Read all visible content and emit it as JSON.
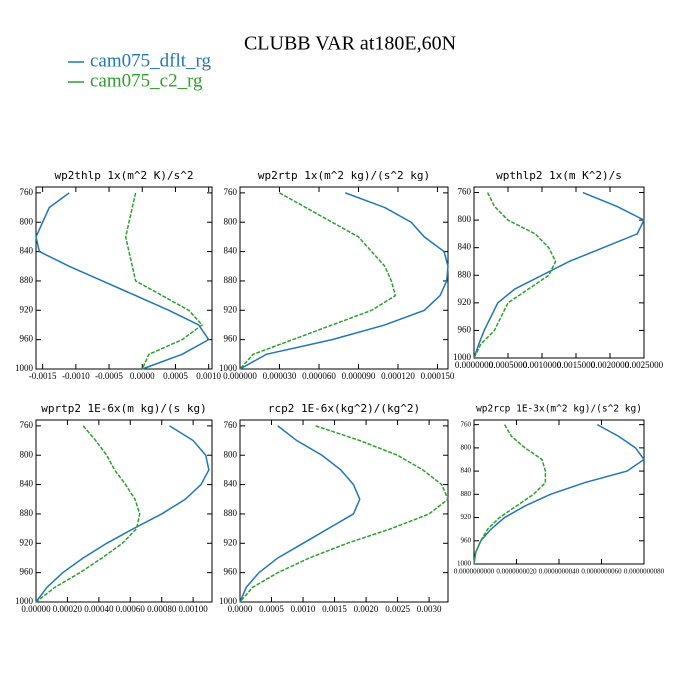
{
  "title": "CLUBB VAR at180E,60N",
  "series": [
    {
      "name": "cam075_dflt_rg",
      "color": "#1f77b4"
    },
    {
      "name": "cam075_c2_rg",
      "color": "#2ca02c"
    }
  ],
  "chart_data": [
    {
      "type": "line",
      "title": "wp2thlp  1x(m^2 K)/s^2",
      "y": [
        760,
        780,
        800,
        820,
        840,
        860,
        880,
        900,
        920,
        940,
        960,
        980,
        1000
      ],
      "series": [
        {
          "values": [
            -0.0011,
            -0.0014,
            -0.0015,
            -0.0016,
            -0.00155,
            -0.0011,
            -0.0006,
            -0.0001,
            0.0004,
            0.00085,
            0.001,
            0.0006,
            0.0
          ]
        },
        {
          "values": [
            -0.0001,
            -0.00015,
            -0.0002,
            -0.00025,
            -0.0002,
            -0.00015,
            -0.0001,
            0.0003,
            0.0007,
            0.0009,
            0.0006,
            0.0001,
            0.0
          ]
        }
      ],
      "xlim": [
        -0.0016,
        0.00105
      ],
      "xticks": [
        {
          "value": -0.0015,
          "label": "-0.0015"
        },
        {
          "value": -0.001,
          "label": "-0.0010"
        },
        {
          "value": -0.0005,
          "label": "-0.0005"
        },
        {
          "value": 0,
          "label": "0.0000"
        },
        {
          "value": 0.0005,
          "label": "0.0005"
        },
        {
          "value": 0.001,
          "label": "0.0010"
        }
      ],
      "ylim": [
        1000,
        752
      ],
      "yticks": [
        760,
        800,
        840,
        880,
        920,
        960,
        1000
      ]
    },
    {
      "type": "line",
      "title": "wp2rtp  1x(m^2 kg)/(s^2 kg)",
      "y": [
        760,
        780,
        800,
        820,
        840,
        860,
        880,
        900,
        920,
        940,
        960,
        980,
        1000
      ],
      "series": [
        {
          "values": [
            8e-05,
            0.00011,
            0.00013,
            0.00014,
            0.000155,
            0.000158,
            0.000157,
            0.000152,
            0.00014,
            0.00011,
            7e-05,
            2e-05,
            0.0
          ]
        },
        {
          "values": [
            3e-05,
            5e-05,
            7e-05,
            9e-05,
            0.0001,
            0.00011,
            0.000115,
            0.000118,
            0.0001,
            7e-05,
            4e-05,
            1e-05,
            0.0
          ]
        }
      ],
      "xlim": [
        0,
        0.000158
      ],
      "xticks": [
        {
          "value": 0,
          "label": "0.000000"
        },
        {
          "value": 3e-05,
          "label": "0.000030"
        },
        {
          "value": 6e-05,
          "label": "0.000060"
        },
        {
          "value": 9e-05,
          "label": "0.000090"
        },
        {
          "value": 0.00012,
          "label": "0.000120"
        },
        {
          "value": 0.00015,
          "label": "0.000150"
        }
      ],
      "ylim": [
        1000,
        752
      ],
      "yticks": [
        760,
        800,
        840,
        880,
        920,
        960,
        1000
      ]
    },
    {
      "type": "line",
      "title": "wpthlp2  1x(m K^2)/s",
      "y": [
        760,
        780,
        800,
        820,
        840,
        860,
        880,
        900,
        920,
        940,
        960,
        980,
        1000
      ],
      "series": [
        {
          "values": [
            0.0016,
            0.0021,
            0.0025,
            0.0024,
            0.0019,
            0.0014,
            0.001,
            0.0006,
            0.00035,
            0.00025,
            0.00015,
            7e-05,
            0.0
          ]
        },
        {
          "values": [
            0.0002,
            0.0003,
            0.0005,
            0.0009,
            0.0011,
            0.0012,
            0.0011,
            0.0008,
            0.0005,
            0.0004,
            0.0003,
            0.0001,
            0.0
          ]
        }
      ],
      "xlim": [
        0,
        0.0025
      ],
      "xticks": [
        {
          "value": 0,
          "label": "0.0000000"
        },
        {
          "value": 0.0005,
          "label": "0.0005000"
        },
        {
          "value": 0.001,
          "label": "0.0010000"
        },
        {
          "value": 0.0015,
          "label": "0.0015000"
        },
        {
          "value": 0.002,
          "label": "0.0020000"
        },
        {
          "value": 0.0025,
          "label": "0.0025000"
        }
      ],
      "ylim": [
        1000,
        752
      ],
      "yticks": [
        760,
        800,
        840,
        880,
        920,
        960,
        1000
      ]
    },
    {
      "type": "line",
      "title": "wprtp2  1E-6x(m kg)/(s kg)",
      "y": [
        760,
        780,
        800,
        820,
        840,
        860,
        880,
        900,
        920,
        940,
        960,
        980,
        1000
      ],
      "series": [
        {
          "values": [
            0.00085,
            0.001,
            0.00108,
            0.0011,
            0.00105,
            0.00095,
            0.0008,
            0.00062,
            0.00045,
            0.0003,
            0.00017,
            7e-05,
            0.0
          ]
        },
        {
          "values": [
            0.0003,
            0.00038,
            0.00045,
            0.0005,
            0.00057,
            0.00063,
            0.00066,
            0.00064,
            0.00055,
            0.00042,
            0.00028,
            0.00012,
            0.0
          ]
        }
      ],
      "xlim": [
        0,
        0.00112
      ],
      "xticks": [
        {
          "value": 0,
          "label": "0.00000"
        },
        {
          "value": 0.0002,
          "label": "0.00020"
        },
        {
          "value": 0.0004,
          "label": "0.00040"
        },
        {
          "value": 0.0006,
          "label": "0.00060"
        },
        {
          "value": 0.0008,
          "label": "0.00080"
        },
        {
          "value": 0.001,
          "label": "0.00100"
        }
      ],
      "ylim": [
        1000,
        752
      ],
      "yticks": [
        760,
        800,
        840,
        880,
        920,
        960,
        1000
      ]
    },
    {
      "type": "line",
      "title": "rcp2  1E-6x(kg^2)/(kg^2)",
      "y": [
        760,
        780,
        800,
        820,
        840,
        860,
        880,
        900,
        920,
        940,
        960,
        980,
        1000
      ],
      "series": [
        {
          "values": [
            0.0006,
            0.0009,
            0.0013,
            0.0016,
            0.0018,
            0.0019,
            0.0018,
            0.0014,
            0.001,
            0.0006,
            0.0003,
            0.0001,
            0.0
          ]
        },
        {
          "values": [
            0.0012,
            0.0019,
            0.0025,
            0.0029,
            0.0032,
            0.0033,
            0.003,
            0.0024,
            0.0017,
            0.0011,
            0.0006,
            0.0002,
            0.0
          ]
        }
      ],
      "xlim": [
        0,
        0.0033
      ],
      "xticks": [
        {
          "value": 0,
          "label": "0.0000"
        },
        {
          "value": 0.0005,
          "label": "0.0005"
        },
        {
          "value": 0.001,
          "label": "0.0010"
        },
        {
          "value": 0.0015,
          "label": "0.0015"
        },
        {
          "value": 0.002,
          "label": "0.0020"
        },
        {
          "value": 0.0025,
          "label": "0.0025"
        },
        {
          "value": 0.003,
          "label": "0.0030"
        }
      ],
      "ylim": [
        1000,
        752
      ],
      "yticks": [
        760,
        800,
        840,
        880,
        920,
        960,
        1000
      ]
    },
    {
      "type": "line",
      "title": "wp2rcp  1E-3x(m^2 kg)/(s^2 kg)",
      "y": [
        760,
        780,
        800,
        820,
        840,
        860,
        880,
        900,
        920,
        940,
        960,
        980,
        1000
      ],
      "series": [
        {
          "values": [
            5.8e-09,
            6.8e-09,
            7.6e-09,
            8e-09,
            7.2e-09,
            5.2e-09,
            3.6e-09,
            2.4e-09,
            1.44e-09,
            8e-10,
            3.2e-10,
            8e-11,
            0
          ]
        },
        {
          "values": [
            1.44e-09,
            1.76e-09,
            2.4e-09,
            3.2e-09,
            3.36e-09,
            3.36e-09,
            2.8e-09,
            2e-09,
            1.2e-09,
            6.4e-10,
            3.2e-10,
            8e-11,
            0
          ]
        }
      ],
      "xlim": [
        0,
        8e-09
      ],
      "xticks": [
        {
          "value": 0,
          "label": "0.0000000000"
        },
        {
          "value": 2e-09,
          "label": "0.0000000020"
        },
        {
          "value": 4e-09,
          "label": "0.0000000040"
        },
        {
          "value": 6e-09,
          "label": "0.0000000060"
        },
        {
          "value": 8e-09,
          "label": "0.0000000080"
        }
      ],
      "ylim": [
        1000,
        752
      ],
      "yticks": [
        760,
        800,
        840,
        880,
        920,
        960,
        1000
      ]
    }
  ]
}
